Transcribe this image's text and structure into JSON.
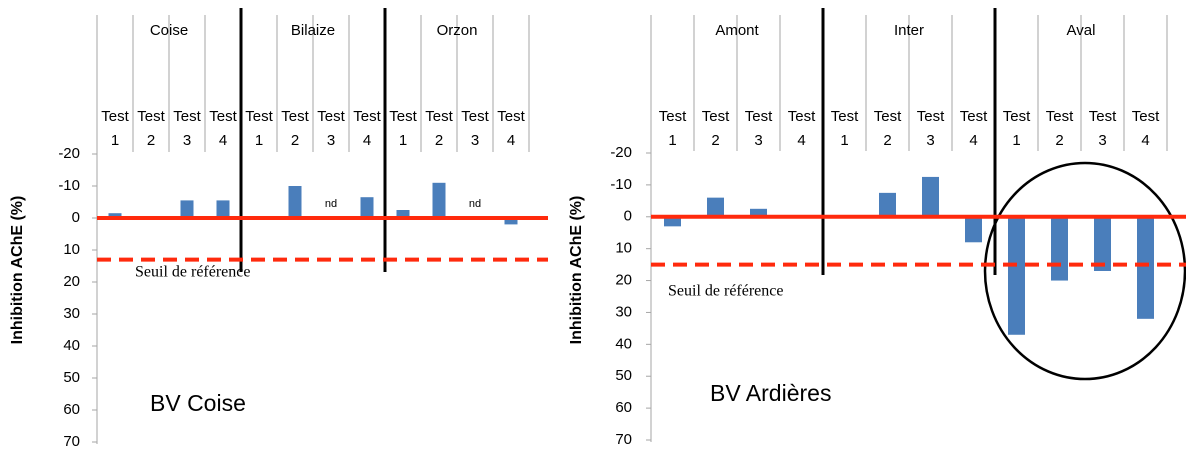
{
  "chart_data": [
    {
      "type": "bar",
      "title": "BV Coise",
      "ylabel": "Inhibition AChE (%)",
      "groups": [
        "Coise",
        "Bilaize",
        "Orzon"
      ],
      "categories": [
        "Test 1",
        "Test 2",
        "Test 3",
        "Test 4",
        "Test 1",
        "Test 2",
        "Test 3",
        "Test 4",
        "Test 1",
        "Test 2",
        "Test 3",
        "Test 4"
      ],
      "values": [
        -1.5,
        0.5,
        -5.5,
        -5.5,
        0.5,
        -10,
        null,
        -6.5,
        -2.5,
        -11,
        null,
        2
      ],
      "value_labels": [
        null,
        null,
        null,
        null,
        null,
        null,
        "nd",
        null,
        null,
        null,
        "nd",
        null
      ],
      "color": "#4a7ebb",
      "ylim": [
        70,
        -20
      ],
      "yticks": [
        -20,
        -10,
        0,
        10,
        20,
        30,
        40,
        50,
        60,
        70
      ],
      "threshold": {
        "value": 13,
        "label": "Seuil de référence",
        "color": "#ff2a0d"
      }
    },
    {
      "type": "bar",
      "title": "BV Ardières",
      "ylabel": "Inhibition AChE (%)",
      "groups": [
        "Amont",
        "Inter",
        "Aval"
      ],
      "categories": [
        "Test 1",
        "Test 2",
        "Test 3",
        "Test 4",
        "Test 1",
        "Test 2",
        "Test 3",
        "Test 4",
        "Test 1",
        "Test 2",
        "Test 3",
        "Test 4"
      ],
      "values": [
        3,
        -6,
        -2.5,
        0,
        0,
        -7.5,
        -12.5,
        8,
        37,
        20,
        17,
        32
      ],
      "color": "#4a7ebb",
      "ylim": [
        70,
        -20
      ],
      "yticks": [
        -20,
        -10,
        0,
        10,
        20,
        30,
        40,
        50,
        60,
        70
      ],
      "threshold": {
        "value": 15,
        "label": "Seuil de référence",
        "color": "#ff2a0d"
      }
    }
  ]
}
